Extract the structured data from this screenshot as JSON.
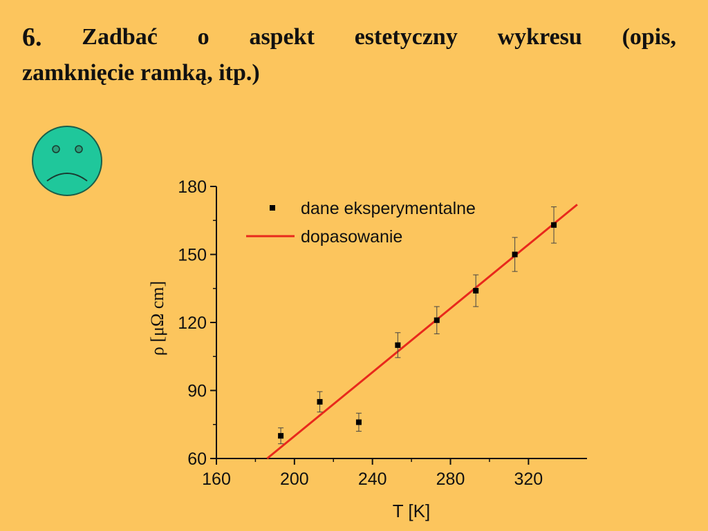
{
  "heading": {
    "number": "6.",
    "words_line1": [
      "Zadbać",
      "o",
      "aspekt",
      "estetyczny",
      "wykresu",
      "(opis,"
    ],
    "line2": "zamknięcie ramką, itp.)"
  },
  "face": {
    "icon": "sad-face-icon",
    "color": "#1FC79B"
  },
  "chart_data": {
    "type": "scatter",
    "xlabel": "T [K]",
    "ylabel": "ρ [μΩ cm]",
    "xlim": [
      160,
      350
    ],
    "ylim": [
      60,
      180
    ],
    "x_ticks": [
      160,
      200,
      240,
      280,
      320
    ],
    "y_ticks": [
      60,
      90,
      120,
      150,
      180
    ],
    "grid": false,
    "legend_position": "top-right",
    "series": [
      {
        "name": "dane eksperymentalne",
        "kind": "points",
        "color": "#000000",
        "x": [
          193,
          213,
          233,
          253,
          273,
          293,
          313,
          333
        ],
        "y": [
          70,
          85,
          76,
          110,
          121,
          134,
          150,
          163
        ],
        "error": [
          3.5,
          4.5,
          4,
          5.5,
          6,
          7,
          7.5,
          8
        ]
      },
      {
        "name": "dopasowanie",
        "kind": "line",
        "color": "#E8291C",
        "x": [
          186,
          345
        ],
        "y": [
          60,
          172
        ]
      }
    ]
  }
}
